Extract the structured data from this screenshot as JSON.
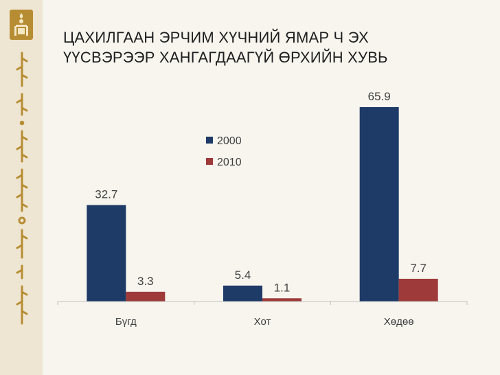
{
  "title": {
    "line1": "ЦАХИЛГААН ЭРЧИМ ХҮЧНИЙ ЯМАР Ч ЭХ",
    "line2": "ҮҮСВЭРЭЭР ХАНГАГДААГҮЙ ӨРХИЙН ХУВЬ"
  },
  "colors": {
    "series_2000": "#1e3a66",
    "series_2010": "#9e3a3a",
    "accent_gold": "#b78d33"
  },
  "icons": [
    "soyombo-emblem-icon",
    "mongolian-script-decoration"
  ],
  "chart_data": {
    "type": "bar",
    "title": "ЦАХИЛГААН ЭРЧИМ ХҮЧНИЙ ЯМАР Ч ЭХ ҮҮСВЭРЭЭР ХАНГАГДААГҮЙ ӨРХИЙН ХУВЬ",
    "categories": [
      "Бүгд",
      "Хот",
      "Хөдөө"
    ],
    "series": [
      {
        "name": "2000",
        "values": [
          32.7,
          5.4,
          65.9
        ]
      },
      {
        "name": "2010",
        "values": [
          3.3,
          1.1,
          7.7
        ]
      }
    ],
    "data_labels": [
      [
        "32.7",
        "5.4",
        "65.9"
      ],
      [
        "3.3",
        "1.1",
        "7.7"
      ]
    ],
    "ylim": [
      0,
      70
    ],
    "grid": false,
    "legend": "center",
    "xlabel": "",
    "ylabel": ""
  }
}
